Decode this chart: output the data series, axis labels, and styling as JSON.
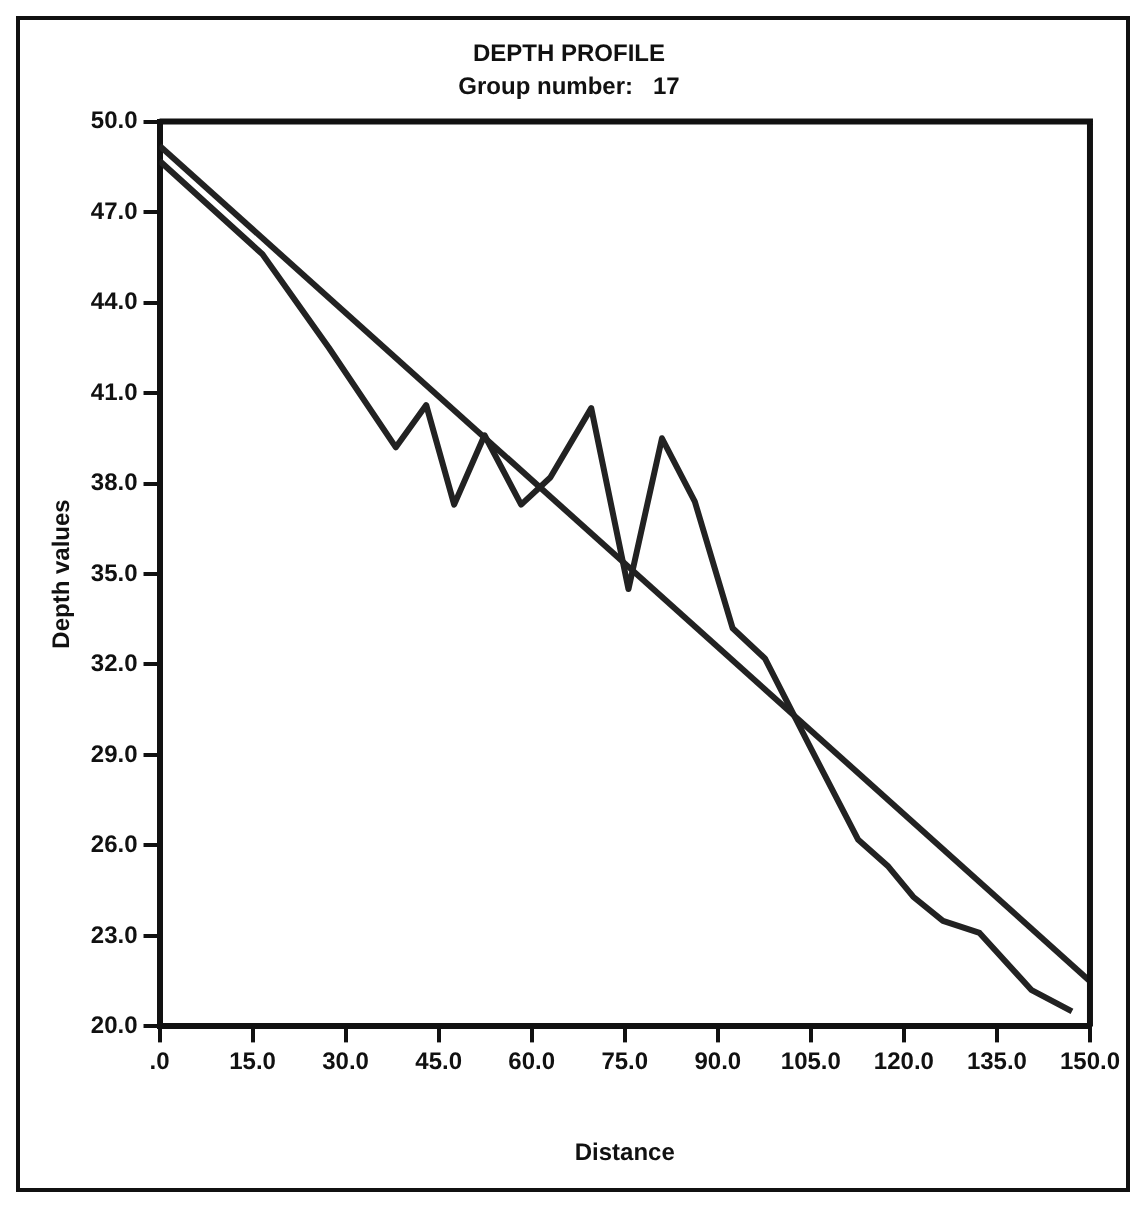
{
  "chart_data": {
    "type": "line",
    "title": "DEPTH PROFILE",
    "subtitle": "Group number:   17",
    "xlabel": "Distance",
    "ylabel": "Depth values",
    "xlim": [
      0,
      150
    ],
    "ylim": [
      20,
      50
    ],
    "xticks": [
      {
        "value": 0,
        "label": ".0"
      },
      {
        "value": 15,
        "label": "15.0"
      },
      {
        "value": 30,
        "label": "30.0"
      },
      {
        "value": 45,
        "label": "45.0"
      },
      {
        "value": 60,
        "label": "60.0"
      },
      {
        "value": 75,
        "label": "75.0"
      },
      {
        "value": 90,
        "label": "90.0"
      },
      {
        "value": 105,
        "label": "105.0"
      },
      {
        "value": 120,
        "label": "120.0"
      },
      {
        "value": 135,
        "label": "135.0"
      },
      {
        "value": 150,
        "label": "150.0"
      }
    ],
    "yticks": [
      {
        "value": 20,
        "label": "20.0"
      },
      {
        "value": 23,
        "label": "23.0"
      },
      {
        "value": 26,
        "label": "26.0"
      },
      {
        "value": 29,
        "label": "29.0"
      },
      {
        "value": 32,
        "label": "32.0"
      },
      {
        "value": 35,
        "label": "35.0"
      },
      {
        "value": 38,
        "label": "38.0"
      },
      {
        "value": 41,
        "label": "41.0"
      },
      {
        "value": 44,
        "label": "44.0"
      },
      {
        "value": 47,
        "label": "47.0"
      },
      {
        "value": 50,
        "label": "50.0"
      }
    ],
    "grid": false,
    "legend": false,
    "marker": "none",
    "line_style": "solid",
    "series": [
      {
        "color": "#222222",
        "x": [
          0,
          16.6,
          27.3,
          38.1,
          43,
          47.5,
          52.4,
          58.3,
          63,
          69.6,
          75.6,
          81,
          86.3,
          92.4,
          97.6,
          104.8,
          112.6,
          117.5,
          121.5,
          126.3,
          132.2,
          140.6,
          147.1
        ],
        "values": [
          48.7,
          45.6,
          42.5,
          39.2,
          40.6,
          37.3,
          39.6,
          37.3,
          38.2,
          40.5,
          34.5,
          39.5,
          37.4,
          33.2,
          32.2,
          29.3,
          26.2,
          25.3,
          24.3,
          23.5,
          23.1,
          21.2,
          20.5
        ]
      },
      {
        "color": "#222222",
        "x": [
          0,
          150
        ],
        "values": [
          49.2,
          21.5
        ]
      }
    ]
  }
}
